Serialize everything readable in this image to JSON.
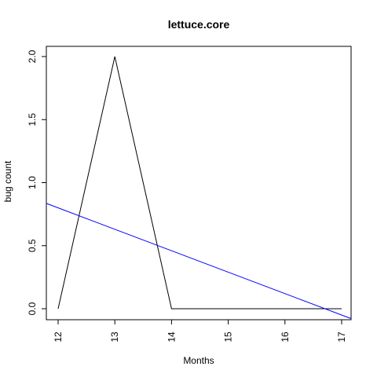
{
  "chart_data": {
    "type": "line",
    "title": "lettuce.core",
    "xlabel": "Months",
    "ylabel": "bug count",
    "xlim": [
      12,
      17
    ],
    "ylim": [
      0,
      2
    ],
    "x_ticks": [
      "12",
      "13",
      "14",
      "15",
      "16",
      "17"
    ],
    "y_ticks": [
      "0.0",
      "0.5",
      "1.0",
      "1.5",
      "2.0"
    ],
    "grid": false,
    "series": [
      {
        "color": "#000000",
        "x": [
          12,
          13,
          14,
          15,
          16,
          17
        ],
        "y": [
          0,
          2,
          0,
          0,
          0,
          0
        ]
      }
    ],
    "trendline": {
      "color": "#0000ff",
      "intercept_at_x12": 0.8,
      "slope": -0.17
    }
  }
}
